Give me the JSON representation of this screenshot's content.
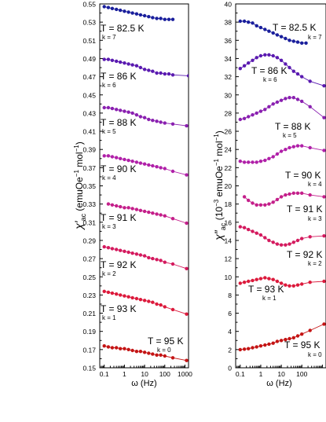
{
  "chart_data": [
    {
      "type": "line",
      "xlabel": "ω (Hz)",
      "ylabel_main": "χ′",
      "ylabel_sub": "ac",
      "ylabel_units": "(emuOe",
      "ylabel_exp": "−1",
      "ylabel_units2": "mol",
      "ylabel_close": ")",
      "xscale": "log",
      "xlim": [
        0.06,
        1500
      ],
      "ylim": [
        0.15,
        0.55
      ],
      "yticks": [
        "0.15",
        "0.17",
        "0.19",
        "0.21",
        "0.23",
        "0.25",
        "0.27",
        "0.29",
        "0.31",
        "0.33",
        "0.35",
        "0.37",
        "0.39",
        "0.41",
        "0.43",
        "0.45",
        "0.47",
        "0.49",
        "0.51",
        "0.53",
        "0.55"
      ],
      "xticks": [
        "0.1",
        "1",
        "10",
        "100",
        "1000"
      ],
      "series": [
        {
          "name": "T = 82.5 K",
          "k": "k = 7",
          "color": "#1a1f9c",
          "x": [
            0.1,
            0.16,
            0.25,
            0.4,
            0.63,
            1,
            1.6,
            2.5,
            4,
            6.3,
            10,
            16,
            25,
            40,
            63,
            100,
            160,
            250
          ],
          "y": [
            0.547,
            0.546,
            0.545,
            0.544,
            0.543,
            0.542,
            0.541,
            0.54,
            0.539,
            0.538,
            0.537,
            0.536,
            0.535,
            0.534,
            0.534,
            0.533,
            0.533,
            0.533
          ]
        },
        {
          "name": "T = 86 K",
          "k": "k = 6",
          "color": "#5a1ab0",
          "x": [
            0.1,
            0.16,
            0.25,
            0.4,
            0.63,
            1,
            1.6,
            2.5,
            4,
            6.3,
            10,
            16,
            25,
            40,
            63,
            100,
            160,
            250,
            1500
          ],
          "y": [
            0.489,
            0.489,
            0.488,
            0.487,
            0.486,
            0.485,
            0.484,
            0.483,
            0.482,
            0.48,
            0.478,
            0.477,
            0.476,
            0.474,
            0.474,
            0.473,
            0.473,
            0.472,
            0.471
          ]
        },
        {
          "name": "T = 88 K",
          "k": "k = 5",
          "color": "#8a20b0",
          "x": [
            0.1,
            0.16,
            0.25,
            0.4,
            0.63,
            1,
            1.6,
            2.5,
            4,
            6.3,
            10,
            16,
            25,
            40,
            63,
            100,
            250,
            1200
          ],
          "y": [
            0.436,
            0.436,
            0.435,
            0.434,
            0.433,
            0.432,
            0.431,
            0.43,
            0.428,
            0.426,
            0.425,
            0.423,
            0.422,
            0.421,
            0.42,
            0.419,
            0.418,
            0.416
          ]
        },
        {
          "name": "T = 90 K",
          "k": "k = 4",
          "color": "#b020a8",
          "x": [
            0.1,
            0.16,
            0.25,
            0.4,
            0.63,
            1,
            1.6,
            2.5,
            4,
            6.3,
            10,
            16,
            25,
            40,
            63,
            100,
            250,
            1200
          ],
          "y": [
            0.383,
            0.383,
            0.382,
            0.381,
            0.38,
            0.379,
            0.378,
            0.377,
            0.376,
            0.375,
            0.374,
            0.373,
            0.372,
            0.371,
            0.37,
            0.369,
            0.366,
            0.362
          ]
        },
        {
          "name": "T = 91 K",
          "k": "k = 3",
          "color": "#c41f8a",
          "x": [
            0.16,
            0.25,
            0.4,
            0.63,
            1,
            1.6,
            2.5,
            4,
            6.3,
            10,
            16,
            25,
            40,
            63,
            100,
            250,
            1200
          ],
          "y": [
            0.33,
            0.329,
            0.328,
            0.327,
            0.326,
            0.326,
            0.325,
            0.324,
            0.323,
            0.322,
            0.321,
            0.32,
            0.319,
            0.318,
            0.317,
            0.314,
            0.309
          ]
        },
        {
          "name": "T = 92 K",
          "k": "k = 2",
          "color": "#d41a5e",
          "x": [
            0.1,
            0.16,
            0.25,
            0.4,
            0.63,
            1,
            1.6,
            2.5,
            4,
            6.3,
            10,
            16,
            25,
            40,
            63,
            100,
            250,
            1200
          ],
          "y": [
            0.283,
            0.282,
            0.281,
            0.28,
            0.279,
            0.278,
            0.277,
            0.276,
            0.275,
            0.274,
            0.273,
            0.271,
            0.27,
            0.269,
            0.268,
            0.266,
            0.264,
            0.259
          ]
        },
        {
          "name": "T =  93 K",
          "k": "k = 1",
          "color": "#dc1a3c",
          "x": [
            0.1,
            0.16,
            0.25,
            0.4,
            0.63,
            1,
            1.6,
            2.5,
            4,
            6.3,
            10,
            16,
            25,
            40,
            63,
            100,
            250,
            1200
          ],
          "y": [
            0.234,
            0.233,
            0.232,
            0.231,
            0.23,
            0.229,
            0.228,
            0.227,
            0.226,
            0.225,
            0.224,
            0.223,
            0.222,
            0.22,
            0.219,
            0.217,
            0.214,
            0.209
          ]
        },
        {
          "name": "T = 95 K",
          "k": "k = 0",
          "color": "#c41414",
          "x": [
            0.1,
            0.16,
            0.25,
            0.4,
            0.63,
            1,
            1.6,
            2.5,
            4,
            6.3,
            10,
            16,
            25,
            40,
            63,
            100,
            250,
            1200
          ],
          "y": [
            0.174,
            0.173,
            0.172,
            0.172,
            0.171,
            0.171,
            0.17,
            0.169,
            0.168,
            0.168,
            0.167,
            0.166,
            0.165,
            0.164,
            0.164,
            0.163,
            0.161,
            0.158
          ]
        }
      ]
    },
    {
      "type": "line",
      "xlabel": "ω (Hz)",
      "ylabel_main": "χ″",
      "ylabel_sub": "ac",
      "ylabel_units": "(10",
      "ylabel_exp": "−3",
      "ylabel_units2": "emuOe",
      "ylabel_exp2": "−1",
      "ylabel_units3": "mol",
      "ylabel_close": ")",
      "xscale": "log",
      "xlim": [
        0.06,
        1500
      ],
      "ylim": [
        0,
        40
      ],
      "yticks": [
        "0",
        "2",
        "4",
        "6",
        "8",
        "10",
        "12",
        "14",
        "16",
        "18",
        "20",
        "22",
        "24",
        "26",
        "28",
        "30",
        "32",
        "34",
        "36",
        "38",
        "40"
      ],
      "xticks": [
        "0.1",
        "1",
        "10",
        "100"
      ],
      "series": [
        {
          "name": "T = 82.5 K",
          "k": "k = 7",
          "color": "#1a1f9c",
          "x": [
            0.1,
            0.16,
            0.25,
            0.4,
            0.63,
            1,
            1.6,
            2.5,
            4,
            6.3,
            10,
            16,
            25,
            40,
            63,
            100,
            160
          ],
          "y": [
            38.1,
            38.1,
            38.0,
            37.9,
            37.6,
            37.4,
            37.2,
            37.0,
            36.8,
            36.6,
            36.4,
            36.2,
            36.0,
            35.9,
            35.8,
            35.7,
            35.7
          ]
        },
        {
          "name": "T = 86 K",
          "k": "k = 6",
          "color": "#5a1ab0",
          "x": [
            0.1,
            0.16,
            0.25,
            0.4,
            0.63,
            1,
            1.6,
            2.5,
            4,
            6.3,
            10,
            16,
            25,
            40,
            63,
            100,
            250,
            1200
          ],
          "y": [
            32.9,
            33.2,
            33.5,
            33.8,
            34.1,
            34.3,
            34.4,
            34.4,
            34.3,
            34.1,
            33.8,
            33.4,
            33.0,
            32.6,
            32.3,
            32.0,
            31.5,
            31.0
          ]
        },
        {
          "name": "T = 88 K",
          "k": "k = 5",
          "color": "#8a20b0",
          "x": [
            0.1,
            0.16,
            0.25,
            0.4,
            0.63,
            1,
            1.6,
            2.5,
            4,
            6.3,
            10,
            16,
            25,
            40,
            63,
            100,
            250,
            1200
          ],
          "y": [
            27.3,
            27.4,
            27.6,
            27.8,
            28.0,
            28.2,
            28.4,
            28.7,
            29.0,
            29.2,
            29.4,
            29.6,
            29.7,
            29.7,
            29.5,
            29.3,
            28.7,
            27.5
          ]
        },
        {
          "name": "T = 90 K",
          "k": "k = 4",
          "color": "#b020a8",
          "x": [
            0.1,
            0.16,
            0.25,
            0.4,
            0.63,
            1,
            1.6,
            2.5,
            4,
            6.3,
            10,
            16,
            25,
            40,
            63,
            100,
            250,
            1200
          ],
          "y": [
            22.7,
            22.6,
            22.6,
            22.6,
            22.6,
            22.7,
            22.8,
            23.0,
            23.2,
            23.5,
            23.8,
            24.0,
            24.2,
            24.3,
            24.4,
            24.4,
            24.2,
            23.9
          ]
        },
        {
          "name": "T = 91 K",
          "k": "k = 3",
          "color": "#c41f8a",
          "x": [
            0.16,
            0.25,
            0.4,
            0.63,
            1,
            1.6,
            2.5,
            4,
            6.3,
            10,
            16,
            25,
            40,
            63,
            100,
            250,
            1200
          ],
          "y": [
            18.8,
            18.4,
            18.1,
            17.9,
            17.9,
            17.9,
            18.0,
            18.2,
            18.5,
            18.8,
            19.0,
            19.1,
            19.2,
            19.2,
            19.2,
            19.0,
            18.8
          ]
        },
        {
          "name": "T = 92 K",
          "k": "k = 2",
          "color": "#d41a5e",
          "x": [
            0.1,
            0.16,
            0.25,
            0.4,
            0.63,
            1,
            1.6,
            2.5,
            4,
            6.3,
            10,
            16,
            25,
            40,
            63,
            100,
            250,
            1200
          ],
          "y": [
            15.5,
            15.4,
            15.2,
            15.0,
            14.8,
            14.6,
            14.3,
            14.0,
            13.8,
            13.6,
            13.5,
            13.5,
            13.6,
            13.8,
            14.0,
            14.2,
            14.4,
            14.5
          ]
        },
        {
          "name": "T =  93 K",
          "k": "k = 1",
          "color": "#dc1a3c",
          "x": [
            0.1,
            0.16,
            0.25,
            0.4,
            0.63,
            1,
            1.6,
            2.5,
            4,
            6.3,
            10,
            16,
            25,
            40,
            63,
            100,
            250,
            1200
          ],
          "y": [
            9.3,
            9.4,
            9.5,
            9.6,
            9.7,
            9.8,
            9.9,
            9.8,
            9.7,
            9.5,
            9.3,
            9.1,
            9.0,
            9.0,
            9.1,
            9.2,
            9.4,
            9.5
          ]
        },
        {
          "name": "T = 95 K",
          "k": "k = 0",
          "color": "#c41414",
          "x": [
            0.1,
            0.16,
            0.25,
            0.4,
            0.63,
            1,
            1.6,
            2.5,
            4,
            6.3,
            10,
            16,
            25,
            40,
            63,
            100,
            250,
            1200
          ],
          "y": [
            2.0,
            2.05,
            2.1,
            2.2,
            2.3,
            2.4,
            2.5,
            2.6,
            2.7,
            2.9,
            3.0,
            3.1,
            3.2,
            3.3,
            3.5,
            3.7,
            4.1,
            4.8
          ]
        }
      ]
    }
  ]
}
